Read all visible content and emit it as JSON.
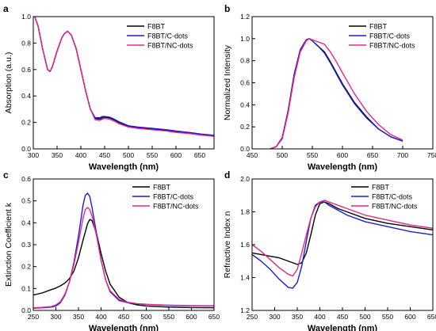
{
  "colors": {
    "F8BT": "#000000",
    "F8BT/C-dots": "#1c1cd6",
    "F8BT/NC-dots": "#e8258c"
  },
  "chart_data": [
    {
      "panel": "a",
      "type": "line",
      "xlabel": "Wavelength (nm)",
      "ylabel": "Absorption (a.u.)",
      "xlim": [
        300,
        680
      ],
      "ylim": [
        0.0,
        1.0
      ],
      "xticks": [
        300,
        350,
        400,
        450,
        500,
        550,
        600,
        650
      ],
      "yticks": [
        0.0,
        0.2,
        0.4,
        0.6,
        0.8,
        1.0
      ],
      "legend_position": "top-right",
      "series": [
        {
          "name": "F8BT",
          "x": [
            303,
            310,
            320,
            330,
            335,
            340,
            350,
            360,
            365,
            372,
            380,
            390,
            400,
            410,
            420,
            430,
            440,
            445,
            450,
            460,
            470,
            480,
            500,
            520,
            550,
            580,
            600,
            630,
            650,
            680
          ],
          "y": [
            1.0,
            0.93,
            0.75,
            0.6,
            0.585,
            0.62,
            0.74,
            0.84,
            0.87,
            0.89,
            0.86,
            0.76,
            0.6,
            0.44,
            0.3,
            0.23,
            0.225,
            0.235,
            0.24,
            0.235,
            0.22,
            0.2,
            0.17,
            0.16,
            0.15,
            0.14,
            0.13,
            0.12,
            0.11,
            0.1
          ]
        },
        {
          "name": "F8BT/C-dots",
          "x": [
            303,
            310,
            320,
            330,
            335,
            340,
            350,
            360,
            365,
            372,
            380,
            390,
            400,
            410,
            420,
            430,
            440,
            445,
            450,
            460,
            470,
            480,
            500,
            520,
            550,
            580,
            600,
            630,
            650,
            680
          ],
          "y": [
            1.0,
            0.93,
            0.75,
            0.6,
            0.585,
            0.62,
            0.74,
            0.84,
            0.87,
            0.89,
            0.86,
            0.76,
            0.6,
            0.44,
            0.3,
            0.235,
            0.235,
            0.245,
            0.245,
            0.24,
            0.225,
            0.205,
            0.175,
            0.165,
            0.155,
            0.145,
            0.135,
            0.123,
            0.113,
            0.103
          ]
        },
        {
          "name": "F8BT/NC-dots",
          "x": [
            303,
            310,
            320,
            330,
            335,
            340,
            350,
            360,
            365,
            372,
            380,
            390,
            400,
            410,
            420,
            430,
            440,
            445,
            450,
            460,
            470,
            480,
            500,
            520,
            550,
            580,
            600,
            630,
            650,
            680
          ],
          "y": [
            1.0,
            0.93,
            0.75,
            0.6,
            0.585,
            0.62,
            0.74,
            0.84,
            0.87,
            0.89,
            0.86,
            0.76,
            0.6,
            0.44,
            0.3,
            0.22,
            0.215,
            0.225,
            0.23,
            0.225,
            0.21,
            0.19,
            0.165,
            0.155,
            0.145,
            0.135,
            0.125,
            0.115,
            0.105,
            0.095
          ]
        }
      ]
    },
    {
      "panel": "b",
      "type": "line",
      "xlabel": "Wavelength (nm)",
      "ylabel": "Normalized Intensity",
      "xlim": [
        450,
        750
      ],
      "ylim": [
        0.0,
        1.2
      ],
      "xticks": [
        450,
        500,
        550,
        600,
        650,
        700,
        750
      ],
      "yticks": [
        0.0,
        0.2,
        0.4,
        0.6,
        0.8,
        1.0,
        1.2
      ],
      "legend_position": "top-right",
      "series": [
        {
          "name": "F8BT",
          "x": [
            480,
            490,
            500,
            510,
            520,
            530,
            540,
            545,
            550,
            560,
            570,
            580,
            590,
            600,
            620,
            640,
            660,
            680,
            700
          ],
          "y": [
            0.0,
            0.02,
            0.1,
            0.35,
            0.68,
            0.9,
            0.99,
            1.0,
            0.98,
            0.93,
            0.88,
            0.79,
            0.69,
            0.59,
            0.42,
            0.29,
            0.18,
            0.11,
            0.07
          ]
        },
        {
          "name": "F8BT/C-dots",
          "x": [
            480,
            490,
            500,
            510,
            520,
            530,
            540,
            545,
            550,
            560,
            570,
            580,
            590,
            600,
            620,
            640,
            660,
            680,
            700
          ],
          "y": [
            0.0,
            0.02,
            0.1,
            0.35,
            0.68,
            0.9,
            0.99,
            1.0,
            0.98,
            0.93,
            0.87,
            0.78,
            0.68,
            0.58,
            0.41,
            0.28,
            0.18,
            0.11,
            0.07
          ]
        },
        {
          "name": "F8BT/NC-dots",
          "x": [
            480,
            490,
            500,
            510,
            520,
            530,
            540,
            545,
            550,
            560,
            570,
            580,
            590,
            600,
            620,
            640,
            660,
            680,
            700
          ],
          "y": [
            0.0,
            0.02,
            0.09,
            0.33,
            0.65,
            0.88,
            0.98,
            1.0,
            0.99,
            0.97,
            0.95,
            0.88,
            0.79,
            0.69,
            0.5,
            0.34,
            0.22,
            0.13,
            0.08
          ]
        }
      ]
    },
    {
      "panel": "c",
      "type": "line",
      "xlabel": "Wavelength (nm)",
      "ylabel": "Extinction Coefficient k",
      "xlim": [
        250,
        650
      ],
      "ylim": [
        0.0,
        0.6
      ],
      "xticks": [
        250,
        300,
        350,
        400,
        450,
        500,
        550,
        600,
        650
      ],
      "yticks": [
        0.0,
        0.1,
        0.2,
        0.3,
        0.4,
        0.5,
        0.6
      ],
      "legend_position": "top-right",
      "series": [
        {
          "name": "F8BT",
          "x": [
            250,
            270,
            290,
            300,
            310,
            320,
            330,
            340,
            350,
            360,
            370,
            375,
            380,
            390,
            400,
            410,
            420,
            440,
            460,
            480,
            500,
            520,
            550,
            600,
            650
          ],
          "y": [
            0.07,
            0.08,
            0.095,
            0.102,
            0.112,
            0.125,
            0.145,
            0.18,
            0.24,
            0.32,
            0.395,
            0.415,
            0.41,
            0.35,
            0.26,
            0.18,
            0.12,
            0.06,
            0.035,
            0.025,
            0.02,
            0.018,
            0.015,
            0.013,
            0.012
          ]
        },
        {
          "name": "F8BT/C-dots",
          "x": [
            250,
            270,
            290,
            300,
            310,
            320,
            330,
            340,
            350,
            360,
            365,
            370,
            375,
            380,
            390,
            400,
            410,
            420,
            440,
            460,
            480,
            500,
            520,
            550,
            600,
            650
          ],
          "y": [
            0.01,
            0.012,
            0.015,
            0.02,
            0.035,
            0.07,
            0.13,
            0.22,
            0.34,
            0.48,
            0.525,
            0.535,
            0.52,
            0.47,
            0.35,
            0.23,
            0.14,
            0.085,
            0.045,
            0.035,
            0.03,
            0.027,
            0.025,
            0.023,
            0.021,
            0.02
          ]
        },
        {
          "name": "F8BT/NC-dots",
          "x": [
            250,
            270,
            290,
            300,
            310,
            320,
            330,
            340,
            350,
            360,
            365,
            370,
            375,
            380,
            390,
            400,
            410,
            420,
            440,
            460,
            480,
            500,
            520,
            550,
            600,
            650
          ],
          "y": [
            0.012,
            0.014,
            0.018,
            0.025,
            0.04,
            0.075,
            0.13,
            0.21,
            0.31,
            0.42,
            0.46,
            0.47,
            0.46,
            0.43,
            0.34,
            0.23,
            0.14,
            0.09,
            0.05,
            0.037,
            0.031,
            0.028,
            0.026,
            0.024,
            0.022,
            0.021
          ]
        }
      ]
    },
    {
      "panel": "d",
      "type": "line",
      "xlabel": "Wavelength (nm)",
      "ylabel": "Refractive Index n",
      "xlim": [
        250,
        650
      ],
      "ylim": [
        1.2,
        2.0
      ],
      "xticks": [
        250,
        300,
        350,
        400,
        450,
        500,
        550,
        600,
        650
      ],
      "yticks": [
        1.2,
        1.4,
        1.6,
        1.8,
        2.0
      ],
      "legend_position": "top-right",
      "series": [
        {
          "name": "F8BT",
          "x": [
            250,
            270,
            290,
            310,
            330,
            350,
            360,
            370,
            380,
            390,
            400,
            410,
            420,
            440,
            460,
            500,
            550,
            600,
            650
          ],
          "y": [
            1.55,
            1.54,
            1.53,
            1.52,
            1.5,
            1.48,
            1.49,
            1.55,
            1.66,
            1.78,
            1.85,
            1.86,
            1.85,
            1.82,
            1.8,
            1.76,
            1.73,
            1.71,
            1.69
          ]
        },
        {
          "name": "F8BT/C-dots",
          "x": [
            250,
            270,
            290,
            310,
            330,
            340,
            350,
            360,
            370,
            380,
            390,
            400,
            410,
            420,
            440,
            460,
            500,
            550,
            600,
            650
          ],
          "y": [
            1.54,
            1.5,
            1.45,
            1.39,
            1.34,
            1.335,
            1.37,
            1.47,
            1.62,
            1.76,
            1.84,
            1.86,
            1.86,
            1.84,
            1.81,
            1.78,
            1.74,
            1.71,
            1.68,
            1.66
          ]
        },
        {
          "name": "F8BT/NC-dots",
          "x": [
            250,
            270,
            290,
            310,
            330,
            340,
            350,
            360,
            370,
            380,
            390,
            400,
            410,
            420,
            440,
            460,
            500,
            550,
            600,
            650
          ],
          "y": [
            1.6,
            1.56,
            1.51,
            1.46,
            1.42,
            1.41,
            1.45,
            1.55,
            1.66,
            1.76,
            1.83,
            1.86,
            1.87,
            1.86,
            1.84,
            1.82,
            1.78,
            1.75,
            1.72,
            1.7
          ]
        }
      ]
    }
  ]
}
